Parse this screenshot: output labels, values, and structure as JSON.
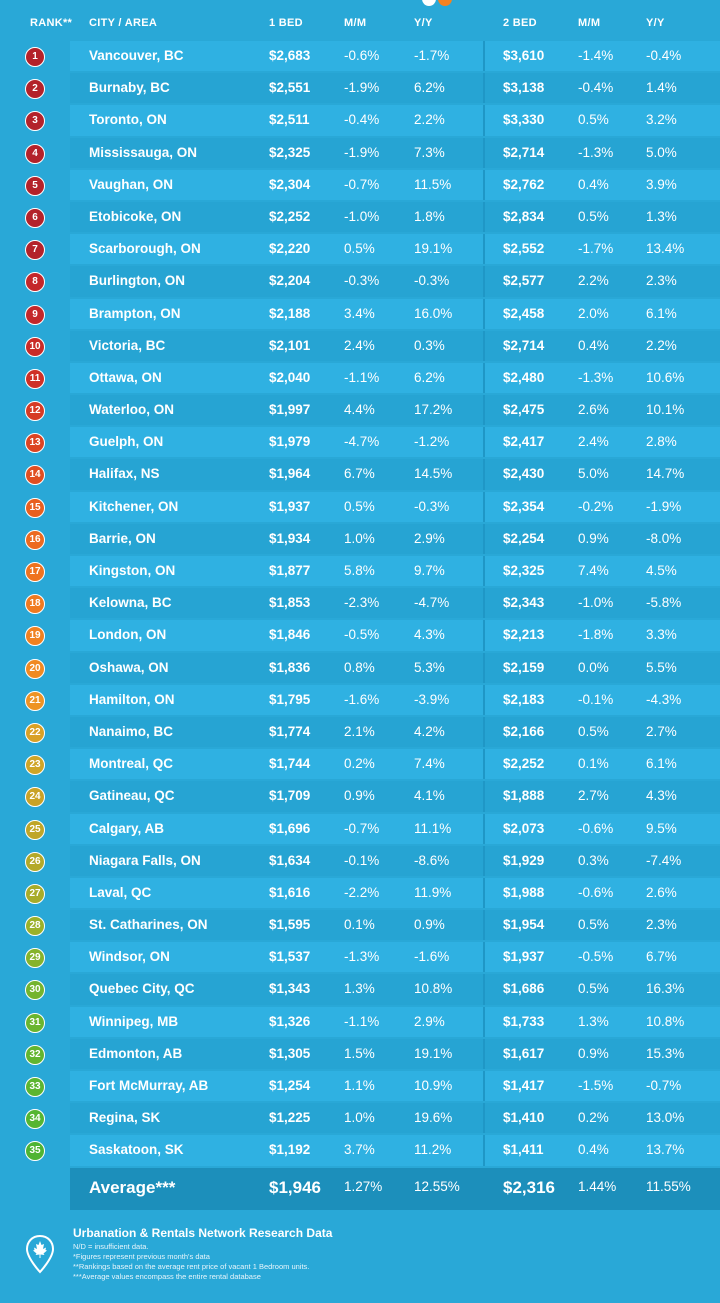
{
  "header": {
    "rank": "RANK**",
    "city": "CITY / AREA",
    "bed1": "1 BED",
    "bed1_mm": "M/M",
    "bed1_yy": "Y/Y",
    "bed2": "2 BED",
    "bed2_mm": "M/M",
    "bed2_yy": "Y/Y"
  },
  "colors": {
    "background": "#29a8d7",
    "rank_scale": [
      "#b3222a",
      "#d63a24",
      "#e8601f",
      "#f08120",
      "#c9a227",
      "#9bb12a",
      "#5cb531"
    ]
  },
  "rows": [
    {
      "rank": "1",
      "city": "Vancouver, BC",
      "bed1": "$2,683",
      "bed1_mm": "-0.6%",
      "bed1_yy": "-1.7%",
      "bed2": "$3,610",
      "bed2_mm": "-1.4%",
      "bed2_yy": "-0.4%",
      "color": "#b3222a"
    },
    {
      "rank": "2",
      "city": "Burnaby, BC",
      "bed1": "$2,551",
      "bed1_mm": "-1.9%",
      "bed1_yy": "6.2%",
      "bed2": "$3,138",
      "bed2_mm": "-0.4%",
      "bed2_yy": "1.4%",
      "color": "#b3222a"
    },
    {
      "rank": "3",
      "city": "Toronto, ON",
      "bed1": "$2,511",
      "bed1_mm": "-0.4%",
      "bed1_yy": "2.2%",
      "bed2": "$3,330",
      "bed2_mm": "0.5%",
      "bed2_yy": "3.2%",
      "color": "#b3222a"
    },
    {
      "rank": "4",
      "city": "Mississauga, ON",
      "bed1": "$2,325",
      "bed1_mm": "-1.9%",
      "bed1_yy": "7.3%",
      "bed2": "$2,714",
      "bed2_mm": "-1.3%",
      "bed2_yy": "5.0%",
      "color": "#b3222a"
    },
    {
      "rank": "5",
      "city": "Vaughan, ON",
      "bed1": "$2,304",
      "bed1_mm": "-0.7%",
      "bed1_yy": "11.5%",
      "bed2": "$2,762",
      "bed2_mm": "0.4%",
      "bed2_yy": "3.9%",
      "color": "#b3222a"
    },
    {
      "rank": "6",
      "city": "Etobicoke, ON",
      "bed1": "$2,252",
      "bed1_mm": "-1.0%",
      "bed1_yy": "1.8%",
      "bed2": "$2,834",
      "bed2_mm": "0.5%",
      "bed2_yy": "1.3%",
      "color": "#b3222a"
    },
    {
      "rank": "7",
      "city": "Scarborough, ON",
      "bed1": "$2,220",
      "bed1_mm": "0.5%",
      "bed1_yy": "19.1%",
      "bed2": "$2,552",
      "bed2_mm": "-1.7%",
      "bed2_yy": "13.4%",
      "color": "#b3222a"
    },
    {
      "rank": "8",
      "city": "Burlington, ON",
      "bed1": "$2,204",
      "bed1_mm": "-0.3%",
      "bed1_yy": "-0.3%",
      "bed2": "$2,577",
      "bed2_mm": "2.2%",
      "bed2_yy": "2.3%",
      "color": "#c4272a"
    },
    {
      "rank": "9",
      "city": "Brampton, ON",
      "bed1": "$2,188",
      "bed1_mm": "3.4%",
      "bed1_yy": "16.0%",
      "bed2": "$2,458",
      "bed2_mm": "2.0%",
      "bed2_yy": "6.1%",
      "color": "#c4272a"
    },
    {
      "rank": "10",
      "city": "Victoria, BC",
      "bed1": "$2,101",
      "bed1_mm": "2.4%",
      "bed1_yy": "0.3%",
      "bed2": "$2,714",
      "bed2_mm": "0.4%",
      "bed2_yy": "2.2%",
      "color": "#c92b28"
    },
    {
      "rank": "11",
      "city": "Ottawa, ON",
      "bed1": "$2,040",
      "bed1_mm": "-1.1%",
      "bed1_yy": "6.2%",
      "bed2": "$2,480",
      "bed2_mm": "-1.3%",
      "bed2_yy": "10.6%",
      "color": "#cf3026"
    },
    {
      "rank": "12",
      "city": "Waterloo, ON",
      "bed1": "$1,997",
      "bed1_mm": "4.4%",
      "bed1_yy": "17.2%",
      "bed2": "$2,475",
      "bed2_mm": "2.6%",
      "bed2_yy": "10.1%",
      "color": "#d63a24"
    },
    {
      "rank": "13",
      "city": "Guelph, ON",
      "bed1": "$1,979",
      "bed1_mm": "-4.7%",
      "bed1_yy": "-1.2%",
      "bed2": "$2,417",
      "bed2_mm": "2.4%",
      "bed2_yy": "2.8%",
      "color": "#dc4422"
    },
    {
      "rank": "14",
      "city": "Halifax, NS",
      "bed1": "$1,964",
      "bed1_mm": "6.7%",
      "bed1_yy": "14.5%",
      "bed2": "$2,430",
      "bed2_mm": "5.0%",
      "bed2_yy": "14.7%",
      "color": "#e04e21"
    },
    {
      "rank": "15",
      "city": "Kitchener, ON",
      "bed1": "$1,937",
      "bed1_mm": "0.5%",
      "bed1_yy": "-0.3%",
      "bed2": "$2,354",
      "bed2_mm": "-0.2%",
      "bed2_yy": "-1.9%",
      "color": "#e8601f"
    },
    {
      "rank": "16",
      "city": "Barrie, ON",
      "bed1": "$1,934",
      "bed1_mm": "1.0%",
      "bed1_yy": "2.9%",
      "bed2": "$2,254",
      "bed2_mm": "0.9%",
      "bed2_yy": "-8.0%",
      "color": "#ec6a1f"
    },
    {
      "rank": "17",
      "city": "Kingston, ON",
      "bed1": "$1,877",
      "bed1_mm": "5.8%",
      "bed1_yy": "9.7%",
      "bed2": "$2,325",
      "bed2_mm": "7.4%",
      "bed2_yy": "4.5%",
      "color": "#ef731f"
    },
    {
      "rank": "18",
      "city": "Kelowna, BC",
      "bed1": "$1,853",
      "bed1_mm": "-2.3%",
      "bed1_yy": "-4.7%",
      "bed2": "$2,343",
      "bed2_mm": "-1.0%",
      "bed2_yy": "-5.8%",
      "color": "#f07a20"
    },
    {
      "rank": "19",
      "city": "London, ON",
      "bed1": "$1,846",
      "bed1_mm": "-0.5%",
      "bed1_yy": "4.3%",
      "bed2": "$2,213",
      "bed2_mm": "-1.8%",
      "bed2_yy": "3.3%",
      "color": "#f08120"
    },
    {
      "rank": "20",
      "city": "Oshawa, ON",
      "bed1": "$1,836",
      "bed1_mm": "0.8%",
      "bed1_yy": "5.3%",
      "bed2": "$2,159",
      "bed2_mm": "0.0%",
      "bed2_yy": "5.5%",
      "color": "#f08a22"
    },
    {
      "rank": "21",
      "city": "Hamilton, ON",
      "bed1": "$1,795",
      "bed1_mm": "-1.6%",
      "bed1_yy": "-3.9%",
      "bed2": "$2,183",
      "bed2_mm": "-0.1%",
      "bed2_yy": "-4.3%",
      "color": "#ee9324"
    },
    {
      "rank": "22",
      "city": "Nanaimo, BC",
      "bed1": "$1,774",
      "bed1_mm": "2.1%",
      "bed1_yy": "4.2%",
      "bed2": "$2,166",
      "bed2_mm": "0.5%",
      "bed2_yy": "2.7%",
      "color": "#d9a126"
    },
    {
      "rank": "23",
      "city": "Montreal, QC",
      "bed1": "$1,744",
      "bed1_mm": "0.2%",
      "bed1_yy": "7.4%",
      "bed2": "$2,252",
      "bed2_mm": "0.1%",
      "bed2_yy": "6.1%",
      "color": "#cfa527"
    },
    {
      "rank": "24",
      "city": "Gatineau, QC",
      "bed1": "$1,709",
      "bed1_mm": "0.9%",
      "bed1_yy": "4.1%",
      "bed2": "$1,888",
      "bed2_mm": "2.7%",
      "bed2_yy": "4.3%",
      "color": "#c9a227"
    },
    {
      "rank": "25",
      "city": "Calgary, AB",
      "bed1": "$1,696",
      "bed1_mm": "-0.7%",
      "bed1_yy": "11.1%",
      "bed2": "$2,073",
      "bed2_mm": "-0.6%",
      "bed2_yy": "9.5%",
      "color": "#bfa628"
    },
    {
      "rank": "26",
      "city": "Niagara Falls, ON",
      "bed1": "$1,634",
      "bed1_mm": "-0.1%",
      "bed1_yy": "-8.6%",
      "bed2": "$1,929",
      "bed2_mm": "0.3%",
      "bed2_yy": "-7.4%",
      "color": "#b4a929"
    },
    {
      "rank": "27",
      "city": "Laval, QC",
      "bed1": "$1,616",
      "bed1_mm": "-2.2%",
      "bed1_yy": "11.9%",
      "bed2": "$1,988",
      "bed2_mm": "-0.6%",
      "bed2_yy": "2.6%",
      "color": "#a8ac29"
    },
    {
      "rank": "28",
      "city": "St. Catharines, ON",
      "bed1": "$1,595",
      "bed1_mm": "0.1%",
      "bed1_yy": "0.9%",
      "bed2": "$1,954",
      "bed2_mm": "0.5%",
      "bed2_yy": "2.3%",
      "color": "#9bb12a"
    },
    {
      "rank": "29",
      "city": "Windsor, ON",
      "bed1": "$1,537",
      "bed1_mm": "-1.3%",
      "bed1_yy": "-1.6%",
      "bed2": "$1,937",
      "bed2_mm": "-0.5%",
      "bed2_yy": "6.7%",
      "color": "#86b32c"
    },
    {
      "rank": "30",
      "city": "Quebec City, QC",
      "bed1": "$1,343",
      "bed1_mm": "1.3%",
      "bed1_yy": "10.8%",
      "bed2": "$1,686",
      "bed2_mm": "0.5%",
      "bed2_yy": "16.3%",
      "color": "#74b42e"
    },
    {
      "rank": "31",
      "city": "Winnipeg, MB",
      "bed1": "$1,326",
      "bed1_mm": "-1.1%",
      "bed1_yy": "2.9%",
      "bed2": "$1,733",
      "bed2_mm": "1.3%",
      "bed2_yy": "10.8%",
      "color": "#6ab52f"
    },
    {
      "rank": "32",
      "city": "Edmonton, AB",
      "bed1": "$1,305",
      "bed1_mm": "1.5%",
      "bed1_yy": "19.1%",
      "bed2": "$1,617",
      "bed2_mm": "0.9%",
      "bed2_yy": "15.3%",
      "color": "#62b530"
    },
    {
      "rank": "33",
      "city": "Fort McMurray, AB",
      "bed1": "$1,254",
      "bed1_mm": "1.1%",
      "bed1_yy": "10.9%",
      "bed2": "$1,417",
      "bed2_mm": "-1.5%",
      "bed2_yy": "-0.7%",
      "color": "#5cb531"
    },
    {
      "rank": "34",
      "city": "Regina, SK",
      "bed1": "$1,225",
      "bed1_mm": "1.0%",
      "bed1_yy": "19.6%",
      "bed2": "$1,410",
      "bed2_mm": "0.2%",
      "bed2_yy": "13.0%",
      "color": "#55b532"
    },
    {
      "rank": "35",
      "city": "Saskatoon, SK",
      "bed1": "$1,192",
      "bed1_mm": "3.7%",
      "bed1_yy": "11.2%",
      "bed2": "$1,411",
      "bed2_mm": "0.4%",
      "bed2_yy": "13.7%",
      "color": "#4eb433"
    }
  ],
  "average": {
    "label": "Average***",
    "bed1": "$1,946",
    "bed1_mm": "1.27%",
    "bed1_yy": "12.55%",
    "bed2": "$2,316",
    "bed2_mm": "1.44%",
    "bed2_yy": "11.55%"
  },
  "footer": {
    "icon": "maple-leaf-pin-icon",
    "source": "Urbanation & Rentals Network Research Data",
    "notes": [
      "N/D = insufficient data.",
      "*Figures represent previous month's data",
      "**Rankings based on the average rent price of vacant 1 Bedroom units.",
      "***Average values encompass the entire rental database"
    ]
  }
}
